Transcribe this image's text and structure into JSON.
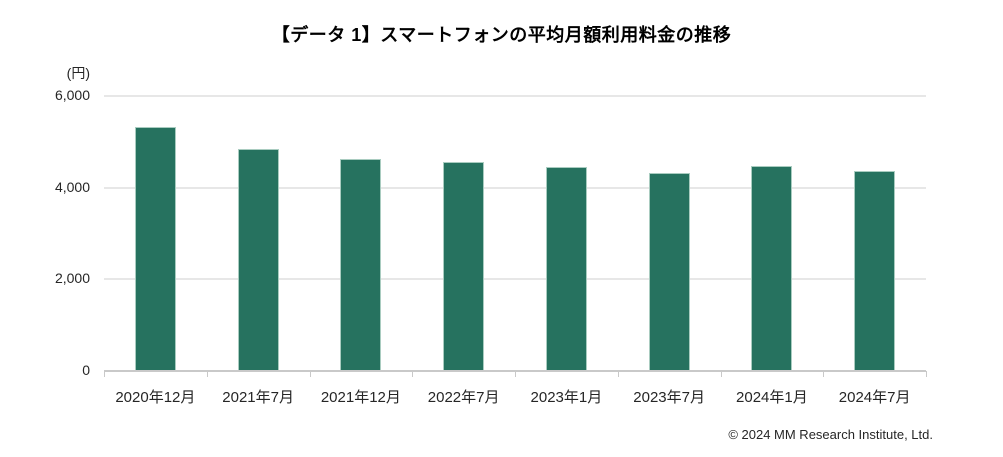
{
  "title": "【データ 1】スマートフォンの平均月額利用料金の推移",
  "footer": {
    "copyright": "© 2024 MM Research Institute, Ltd."
  },
  "colors": {
    "bar": "#26725F",
    "bar_border": "#A9CCC0",
    "gridline": "#E7E7E7",
    "axis": "#C9C9C9",
    "text": "#262626",
    "title_text": "#000000"
  },
  "chart_data": {
    "type": "bar",
    "title": "【データ 1】スマートフォンの平均月額利用料金の推移",
    "unit_label": "(円)",
    "categories": [
      "2020年12月",
      "2021年7月",
      "2021年12月",
      "2022年7月",
      "2023年1月",
      "2023年7月",
      "2024年1月",
      "2024年7月"
    ],
    "values": [
      5334,
      4845,
      4617,
      4558,
      4458,
      4317,
      4476,
      4363
    ],
    "xlabel": "",
    "ylabel": "(円)",
    "ylim": [
      0,
      6000
    ],
    "yticks": [
      0,
      2000,
      4000,
      6000
    ],
    "ytick_labels": [
      "0",
      "2,000",
      "4,000",
      "6,000"
    ],
    "grid": true,
    "legend": "none",
    "bar_color": "#26725F"
  }
}
